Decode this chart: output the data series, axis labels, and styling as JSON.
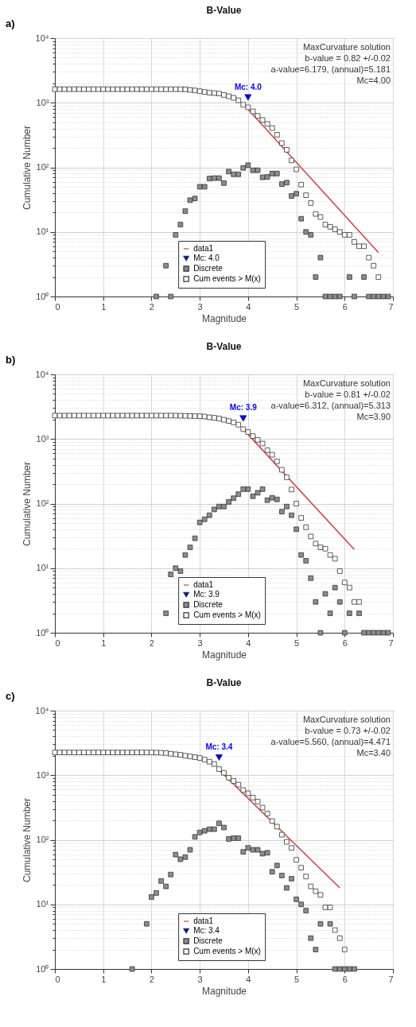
{
  "chart_data": [
    {
      "type": "scatter",
      "title": "B-Value",
      "xlabel": "Magnitude",
      "ylabel": "Cumulative Number",
      "annotations": [
        "a)",
        "MaxCurvature solution",
        "b-value = 0.82 +/-0.02",
        "a-value=6.179, (annual)=5.181",
        "Mc=4.00"
      ],
      "log": "y",
      "grid": true,
      "legend": "bottom",
      "xlim": [
        0,
        7
      ],
      "xticks": [
        0,
        1,
        2,
        3,
        4,
        5,
        6,
        7
      ],
      "ylim": [
        1,
        10000
      ],
      "yticks": [
        {
          "value": 1,
          "label": "10⁰"
        },
        {
          "value": 2,
          "label": null
        },
        {
          "value": 3,
          "label": null
        },
        {
          "value": 4,
          "label": null
        },
        {
          "value": 5,
          "label": null
        },
        {
          "value": 6,
          "label": null
        },
        {
          "value": 7,
          "label": null
        },
        {
          "value": 8,
          "label": null
        },
        {
          "value": 9,
          "label": null
        },
        {
          "value": 10,
          "label": "10¹"
        },
        {
          "value": 20,
          "label": null
        },
        {
          "value": 30,
          "label": null
        },
        {
          "value": 40,
          "label": null
        },
        {
          "value": 50,
          "label": null
        },
        {
          "value": 60,
          "label": null
        },
        {
          "value": 70,
          "label": null
        },
        {
          "value": 80,
          "label": null
        },
        {
          "value": 90,
          "label": null
        },
        {
          "value": 100,
          "label": "10²"
        },
        {
          "value": 200,
          "label": null
        },
        {
          "value": 300,
          "label": null
        },
        {
          "value": 400,
          "label": null
        },
        {
          "value": 500,
          "label": null
        },
        {
          "value": 600,
          "label": null
        },
        {
          "value": 700,
          "label": null
        },
        {
          "value": 800,
          "label": null
        },
        {
          "value": 900,
          "label": null
        },
        {
          "value": 1000,
          "label": "10³"
        },
        {
          "value": 2000,
          "label": null
        },
        {
          "value": 3000,
          "label": null
        },
        {
          "value": 4000,
          "label": null
        },
        {
          "value": 5000,
          "label": null
        },
        {
          "value": 6000,
          "label": null
        },
        {
          "value": 7000,
          "label": null
        },
        {
          "value": 8000,
          "label": null
        },
        {
          "value": 9000,
          "label": null
        },
        {
          "value": 10000,
          "label": "10⁴"
        }
      ],
      "series": [
        {
          "type": "line",
          "name": "data1",
          "color": "#d04040",
          "x": [
            4.0,
            6.7
          ],
          "values": [
            790,
            4.8
          ]
        },
        {
          "type": "scatter",
          "name": "Mc: 4.0",
          "color": "#0000ff",
          "marker": "triangle",
          "x": [
            4.0
          ],
          "values": [
            1210
          ]
        },
        {
          "type": "scatter",
          "name": "Discrete",
          "color": "#8c8c8c",
          "marker": "square",
          "x": [
            2.1,
            2.3,
            2.4,
            2.5,
            2.6,
            2.7,
            2.8,
            2.9,
            3.0,
            3.1,
            3.2,
            3.3,
            3.4,
            3.5,
            3.6,
            3.7,
            3.8,
            3.9,
            4.0,
            4.1,
            4.2,
            4.3,
            4.4,
            4.5,
            4.6,
            4.7,
            4.8,
            4.9,
            5.0,
            5.1,
            5.2,
            5.3,
            5.4,
            5.5,
            5.6,
            5.7,
            5.8,
            5.9,
            6.1,
            6.2,
            6.4,
            6.5,
            6.6,
            6.7,
            6.8,
            6.9
          ],
          "values": [
            1,
            3,
            1,
            9,
            13,
            21,
            31,
            33,
            50,
            50,
            67,
            68,
            68,
            57,
            86,
            78,
            78,
            98,
            108,
            90,
            90,
            70,
            71,
            80,
            80,
            55,
            58,
            36,
            39,
            16,
            10,
            9,
            2,
            4,
            1,
            1,
            1,
            1,
            2,
            1,
            2,
            1,
            1,
            1,
            1,
            1
          ]
        },
        {
          "type": "scatter",
          "name": "Cum events > M(x)",
          "color": "#ffffff",
          "marker": "square",
          "x": [
            0.0,
            0.1,
            0.2,
            0.3,
            0.4,
            0.5,
            0.6,
            0.7,
            0.8,
            0.9,
            1.0,
            1.1,
            1.2,
            1.3,
            1.4,
            1.5,
            1.6,
            1.7,
            1.8,
            1.9,
            2.0,
            2.1,
            2.2,
            2.3,
            2.4,
            2.5,
            2.6,
            2.7,
            2.8,
            2.9,
            3.0,
            3.1,
            3.2,
            3.3,
            3.4,
            3.5,
            3.6,
            3.7,
            3.8,
            3.9,
            4.0,
            4.1,
            4.2,
            4.3,
            4.4,
            4.5,
            4.6,
            4.7,
            4.8,
            4.9,
            5.0,
            5.1,
            5.2,
            5.3,
            5.4,
            5.5,
            5.6,
            5.7,
            5.8,
            5.9,
            6.0,
            6.1,
            6.2,
            6.3,
            6.4,
            6.5,
            6.6,
            6.7
          ],
          "values": [
            1620,
            1620,
            1620,
            1620,
            1620,
            1620,
            1620,
            1620,
            1620,
            1620,
            1620,
            1620,
            1620,
            1620,
            1620,
            1620,
            1620,
            1620,
            1620,
            1620,
            1620,
            1620,
            1620,
            1620,
            1620,
            1620,
            1620,
            1610,
            1580,
            1550,
            1510,
            1470,
            1430,
            1410,
            1390,
            1320,
            1260,
            1190,
            1090,
            930,
            850,
            735,
            625,
            540,
            470,
            405,
            320,
            237,
            187,
            128,
            93,
            54,
            37,
            28,
            19,
            17,
            13,
            12,
            11,
            10,
            9,
            9,
            7,
            6,
            6,
            4,
            3,
            2
          ]
        }
      ]
    },
    {
      "type": "scatter",
      "title": "B-Value",
      "xlabel": "Magnitude",
      "ylabel": "Cumulative Number",
      "annotations": [
        "b)",
        "MaxCurvature solution",
        "b-value = 0.81 +/-0.02",
        "a-value=6.312, (annual)=5.313",
        "Mc=3.90"
      ],
      "log": "y",
      "grid": true,
      "legend": "bottom",
      "xlim": [
        0,
        7
      ],
      "xticks": [
        0,
        1,
        2,
        3,
        4,
        5,
        6,
        7
      ],
      "ylim": [
        1,
        10000
      ],
      "yticks": [
        {
          "value": 1,
          "label": "10⁰"
        },
        {
          "value": 2,
          "label": null
        },
        {
          "value": 3,
          "label": null
        },
        {
          "value": 4,
          "label": null
        },
        {
          "value": 5,
          "label": null
        },
        {
          "value": 6,
          "label": null
        },
        {
          "value": 7,
          "label": null
        },
        {
          "value": 8,
          "label": null
        },
        {
          "value": 9,
          "label": null
        },
        {
          "value": 10,
          "label": "10¹"
        },
        {
          "value": 20,
          "label": null
        },
        {
          "value": 30,
          "label": null
        },
        {
          "value": 40,
          "label": null
        },
        {
          "value": 50,
          "label": null
        },
        {
          "value": 60,
          "label": null
        },
        {
          "value": 70,
          "label": null
        },
        {
          "value": 80,
          "label": null
        },
        {
          "value": 90,
          "label": null
        },
        {
          "value": 100,
          "label": "10²"
        },
        {
          "value": 200,
          "label": null
        },
        {
          "value": 300,
          "label": null
        },
        {
          "value": 400,
          "label": null
        },
        {
          "value": 500,
          "label": null
        },
        {
          "value": 600,
          "label": null
        },
        {
          "value": 700,
          "label": null
        },
        {
          "value": 800,
          "label": null
        },
        {
          "value": 900,
          "label": null
        },
        {
          "value": 1000,
          "label": "10³"
        },
        {
          "value": 2000,
          "label": null
        },
        {
          "value": 3000,
          "label": null
        },
        {
          "value": 4000,
          "label": null
        },
        {
          "value": 5000,
          "label": null
        },
        {
          "value": 6000,
          "label": null
        },
        {
          "value": 7000,
          "label": null
        },
        {
          "value": 8000,
          "label": null
        },
        {
          "value": 9000,
          "label": null
        },
        {
          "value": 10000,
          "label": "10⁴"
        }
      ],
      "series": [
        {
          "type": "line",
          "name": "data1",
          "color": "#d04040",
          "x": [
            3.9,
            6.2
          ],
          "values": [
            1420,
            19.5
          ]
        },
        {
          "type": "scatter",
          "name": "Mc: 3.9",
          "color": "#0000ff",
          "marker": "triangle",
          "x": [
            3.9
          ],
          "values": [
            2075
          ]
        },
        {
          "type": "scatter",
          "name": "Discrete",
          "color": "#8c8c8c",
          "marker": "square",
          "x": [
            2.3,
            2.4,
            2.5,
            2.6,
            2.7,
            2.8,
            2.9,
            3.0,
            3.1,
            3.2,
            3.3,
            3.4,
            3.5,
            3.6,
            3.7,
            3.8,
            3.9,
            4.0,
            4.1,
            4.2,
            4.3,
            4.4,
            4.5,
            4.6,
            4.7,
            4.8,
            4.9,
            5.0,
            5.1,
            5.2,
            5.3,
            5.4,
            5.5,
            5.6,
            5.7,
            5.8,
            5.9,
            6.0,
            6.1,
            6.3,
            6.4,
            6.5,
            6.6,
            6.7,
            6.8,
            6.9
          ],
          "values": [
            2,
            8,
            10,
            9,
            16,
            21,
            29,
            51,
            57,
            66,
            81,
            90,
            90,
            106,
            121,
            140,
            167,
            167,
            130,
            147,
            167,
            113,
            123,
            116,
            75,
            90,
            66,
            40,
            16,
            13,
            7,
            3,
            1,
            4,
            2,
            5,
            3,
            1,
            2,
            2,
            1,
            1,
            1,
            1,
            1,
            1
          ]
        },
        {
          "type": "scatter",
          "name": "Cum events > M(x)",
          "color": "#ffffff",
          "marker": "square",
          "x": [
            0.0,
            0.1,
            0.2,
            0.3,
            0.4,
            0.5,
            0.6,
            0.7,
            0.8,
            0.9,
            1.0,
            1.1,
            1.2,
            1.3,
            1.4,
            1.5,
            1.6,
            1.7,
            1.8,
            1.9,
            2.0,
            2.1,
            2.2,
            2.3,
            2.4,
            2.5,
            2.6,
            2.7,
            2.8,
            2.9,
            3.0,
            3.1,
            3.2,
            3.3,
            3.4,
            3.5,
            3.6,
            3.7,
            3.8,
            3.9,
            4.0,
            4.1,
            4.2,
            4.3,
            4.4,
            4.5,
            4.6,
            4.7,
            4.8,
            4.9,
            5.0,
            5.1,
            5.2,
            5.3,
            5.4,
            5.5,
            5.6,
            5.7,
            5.8,
            5.9,
            6.0,
            6.1,
            6.2,
            6.3
          ],
          "values": [
            2300,
            2300,
            2300,
            2300,
            2300,
            2300,
            2300,
            2300,
            2300,
            2300,
            2300,
            2300,
            2300,
            2300,
            2300,
            2300,
            2300,
            2300,
            2300,
            2300,
            2300,
            2300,
            2300,
            2300,
            2300,
            2300,
            2290,
            2280,
            2270,
            2260,
            2250,
            2225,
            2165,
            2130,
            2075,
            1985,
            1900,
            1805,
            1665,
            1420,
            1280,
            1110,
            970,
            850,
            670,
            570,
            450,
            333,
            255,
            165,
            100,
            60,
            43,
            31,
            24,
            21,
            20,
            16,
            14,
            9,
            6,
            5,
            3,
            3
          ]
        }
      ]
    },
    {
      "type": "scatter",
      "title": "B-Value",
      "xlabel": "Magnitude",
      "ylabel": "Cumulative Number",
      "annotations": [
        "c)",
        "MaxCurvature solution",
        "b-value = 0.73 +/-0.02",
        "a-value=5.560, (annual)=4.471",
        "Mc=3.40"
      ],
      "log": "y",
      "grid": true,
      "legend": "bottom",
      "xlim": [
        0,
        7
      ],
      "xticks": [
        0,
        1,
        2,
        3,
        4,
        5,
        6,
        7
      ],
      "ylim": [
        1,
        10000
      ],
      "yticks": [
        {
          "value": 1,
          "label": "10⁰"
        },
        {
          "value": 2,
          "label": null
        },
        {
          "value": 3,
          "label": null
        },
        {
          "value": 4,
          "label": null
        },
        {
          "value": 5,
          "label": null
        },
        {
          "value": 6,
          "label": null
        },
        {
          "value": 7,
          "label": null
        },
        {
          "value": 8,
          "label": null
        },
        {
          "value": 9,
          "label": null
        },
        {
          "value": 10,
          "label": "10¹"
        },
        {
          "value": 20,
          "label": null
        },
        {
          "value": 30,
          "label": null
        },
        {
          "value": 40,
          "label": null
        },
        {
          "value": 50,
          "label": null
        },
        {
          "value": 60,
          "label": null
        },
        {
          "value": 70,
          "label": null
        },
        {
          "value": 80,
          "label": null
        },
        {
          "value": 90,
          "label": null
        },
        {
          "value": 100,
          "label": "10²"
        },
        {
          "value": 200,
          "label": null
        },
        {
          "value": 300,
          "label": null
        },
        {
          "value": 400,
          "label": null
        },
        {
          "value": 500,
          "label": null
        },
        {
          "value": 600,
          "label": null
        },
        {
          "value": 700,
          "label": null
        },
        {
          "value": 800,
          "label": null
        },
        {
          "value": 900,
          "label": null
        },
        {
          "value": 1000,
          "label": "10³"
        },
        {
          "value": 2000,
          "label": null
        },
        {
          "value": 3000,
          "label": null
        },
        {
          "value": 4000,
          "label": null
        },
        {
          "value": 5000,
          "label": null
        },
        {
          "value": 6000,
          "label": null
        },
        {
          "value": 7000,
          "label": null
        },
        {
          "value": 8000,
          "label": null
        },
        {
          "value": 9000,
          "label": null
        },
        {
          "value": 10000,
          "label": "10⁴"
        }
      ],
      "series": [
        {
          "type": "line",
          "name": "data1",
          "color": "#d04040",
          "x": [
            3.4,
            5.9
          ],
          "values": [
            1200,
            18
          ]
        },
        {
          "type": "scatter",
          "name": "Mc: 3.4",
          "color": "#0000ff",
          "marker": "triangle",
          "x": [
            3.4
          ],
          "values": [
            1880
          ]
        },
        {
          "type": "scatter",
          "name": "Discrete",
          "color": "#8c8c8c",
          "marker": "square",
          "x": [
            1.6,
            1.9,
            2.0,
            2.1,
            2.2,
            2.3,
            2.4,
            2.5,
            2.6,
            2.7,
            2.8,
            2.9,
            3.0,
            3.1,
            3.2,
            3.3,
            3.4,
            3.5,
            3.6,
            3.7,
            3.8,
            3.9,
            4.0,
            4.1,
            4.2,
            4.3,
            4.4,
            4.5,
            4.6,
            4.7,
            4.8,
            4.9,
            5.0,
            5.1,
            5.2,
            5.3,
            5.4,
            5.5,
            5.7,
            5.8,
            5.9,
            6.0,
            6.1,
            6.2
          ],
          "values": [
            1,
            5,
            13,
            15,
            23,
            19,
            29,
            59,
            50,
            54,
            70,
            111,
            130,
            138,
            146,
            146,
            180,
            155,
            103,
            106,
            106,
            65,
            75,
            70,
            70,
            61,
            63,
            32,
            40,
            28,
            18,
            25,
            12,
            10,
            8,
            3,
            2,
            5,
            5,
            1,
            1,
            1,
            1,
            1
          ]
        },
        {
          "type": "scatter",
          "name": "Cum events > M(x)",
          "color": "#ffffff",
          "marker": "square",
          "x": [
            0.0,
            0.1,
            0.2,
            0.3,
            0.4,
            0.5,
            0.6,
            0.7,
            0.8,
            0.9,
            1.0,
            1.1,
            1.2,
            1.3,
            1.4,
            1.5,
            1.6,
            1.7,
            1.8,
            1.9,
            2.0,
            2.1,
            2.2,
            2.3,
            2.4,
            2.5,
            2.6,
            2.7,
            2.8,
            2.9,
            3.0,
            3.1,
            3.2,
            3.3,
            3.4,
            3.5,
            3.6,
            3.7,
            3.8,
            3.9,
            4.0,
            4.1,
            4.2,
            4.3,
            4.4,
            4.5,
            4.6,
            4.7,
            4.8,
            4.9,
            5.0,
            5.1,
            5.2,
            5.3,
            5.4,
            5.5,
            5.6,
            5.7,
            5.8,
            5.9,
            6.0
          ],
          "values": [
            2250,
            2250,
            2250,
            2250,
            2250,
            2250,
            2250,
            2250,
            2250,
            2250,
            2250,
            2250,
            2250,
            2250,
            2250,
            2250,
            2250,
            2250,
            2250,
            2250,
            2250,
            2240,
            2225,
            2205,
            2150,
            2110,
            2070,
            2000,
            1950,
            1900,
            1850,
            1740,
            1620,
            1490,
            1245,
            1090,
            915,
            815,
            715,
            590,
            525,
            450,
            390,
            315,
            255,
            195,
            160,
            120,
            93,
            75,
            49,
            37,
            27,
            19,
            16,
            14,
            9,
            9,
            4,
            3,
            2
          ]
        }
      ]
    }
  ]
}
